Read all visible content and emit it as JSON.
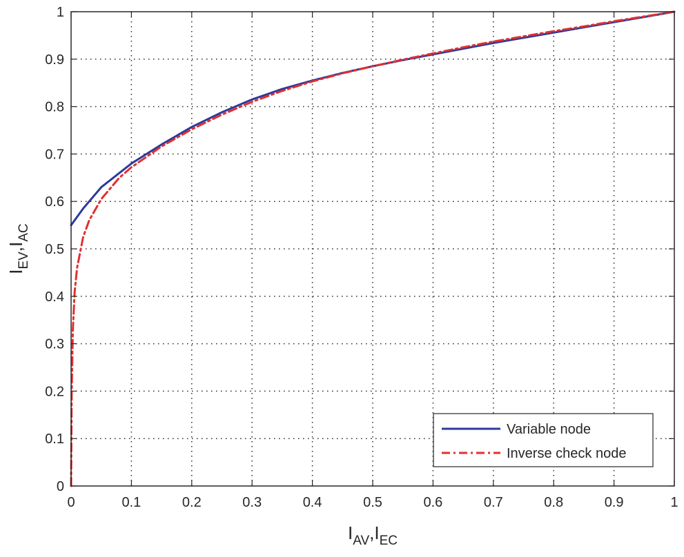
{
  "chart_data": {
    "type": "line",
    "title": "",
    "xlabel": {
      "main": "I",
      "sub1": "AV",
      "sep": ",",
      "main2": "I",
      "sub2": "EC"
    },
    "ylabel": {
      "main": "I",
      "sub1": "EV",
      "sep": ",",
      "main2": "I",
      "sub2": "AC"
    },
    "xlim": [
      0,
      1
    ],
    "ylim": [
      0,
      1
    ],
    "xticks": [
      0,
      0.1,
      0.2,
      0.3,
      0.4,
      0.5,
      0.6,
      0.7,
      0.8,
      0.9,
      1
    ],
    "yticks": [
      0,
      0.1,
      0.2,
      0.3,
      0.4,
      0.5,
      0.6,
      0.7,
      0.8,
      0.9,
      1
    ],
    "xtick_labels": [
      "0",
      "0.1",
      "0.2",
      "0.3",
      "0.4",
      "0.5",
      "0.6",
      "0.7",
      "0.8",
      "0.9",
      "1"
    ],
    "ytick_labels": [
      "0",
      "0.1",
      "0.2",
      "0.3",
      "0.4",
      "0.5",
      "0.6",
      "0.7",
      "0.8",
      "0.9",
      "1"
    ],
    "grid": true,
    "legend_position": "bottom-right",
    "series": [
      {
        "name": "Variable node",
        "color": "#2b3a9a",
        "style": "solid",
        "x": [
          0,
          0.02,
          0.05,
          0.1,
          0.15,
          0.2,
          0.25,
          0.3,
          0.35,
          0.4,
          0.45,
          0.5,
          0.55,
          0.6,
          0.65,
          0.7,
          0.75,
          0.8,
          0.85,
          0.9,
          0.95,
          1.0
        ],
        "y": [
          0.55,
          0.585,
          0.63,
          0.68,
          0.72,
          0.757,
          0.788,
          0.815,
          0.837,
          0.855,
          0.871,
          0.885,
          0.898,
          0.91,
          0.922,
          0.934,
          0.945,
          0.956,
          0.967,
          0.978,
          0.989,
          1.0
        ]
      },
      {
        "name": "Inverse check node",
        "color": "#e03030",
        "style": "dashdot",
        "x": [
          0,
          0.001,
          0.003,
          0.006,
          0.01,
          0.02,
          0.03,
          0.05,
          0.08,
          0.1,
          0.15,
          0.2,
          0.25,
          0.3,
          0.35,
          0.4,
          0.45,
          0.5,
          0.55,
          0.6,
          0.65,
          0.7,
          0.75,
          0.8,
          0.85,
          0.9,
          0.95,
          1.0
        ],
        "y": [
          0,
          0.2,
          0.33,
          0.41,
          0.46,
          0.525,
          0.56,
          0.605,
          0.65,
          0.672,
          0.716,
          0.752,
          0.783,
          0.81,
          0.833,
          0.853,
          0.87,
          0.885,
          0.899,
          0.912,
          0.925,
          0.937,
          0.948,
          0.959,
          0.969,
          0.98,
          0.99,
          1.0
        ]
      }
    ]
  }
}
